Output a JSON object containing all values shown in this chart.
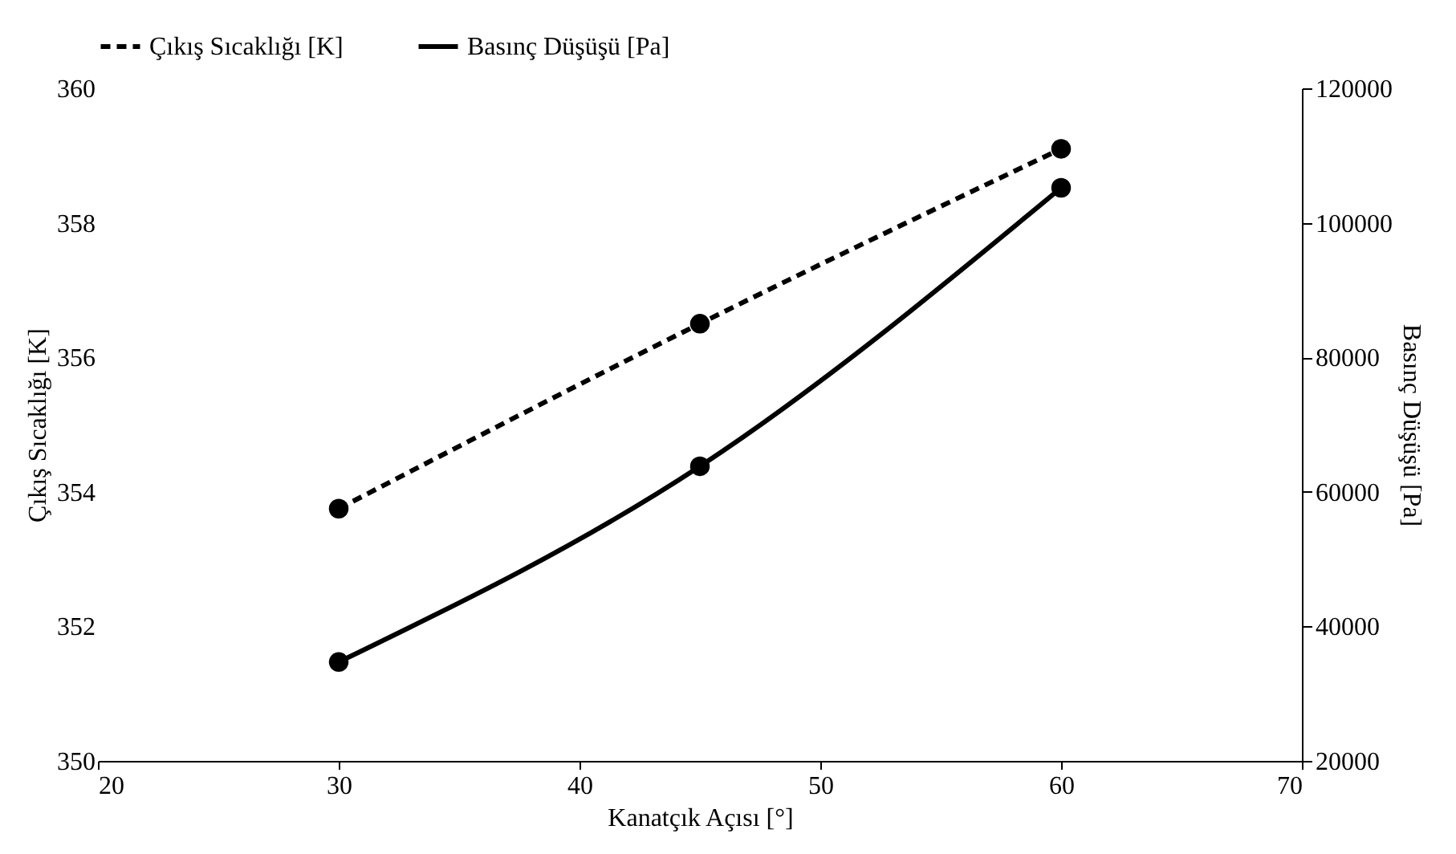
{
  "chart_data": {
    "type": "line",
    "xlabel": "Kanatçık Açısı [°]",
    "ylabel": "Çıkış Sıcaklığı [K]",
    "y2label": "Basınç Düşüşü [Pa]",
    "x": [
      30,
      45,
      60
    ],
    "series": [
      {
        "name": "Çıkış Sıcaklığı [K]",
        "color": "#000000",
        "line_style": "dashed",
        "values": [
          353.75,
          356.5,
          359.1
        ]
      },
      {
        "name": "Basınç Düşüşü [Pa]",
        "color": "#000000",
        "line_style": "solid",
        "axis": "y2",
        "values": [
          34700,
          63800,
          105200
        ]
      }
    ],
    "xlim": [
      20,
      70
    ],
    "xticks": [
      20,
      30,
      40,
      50,
      60,
      70
    ],
    "ylim": [
      350,
      360
    ],
    "yticks": [
      350,
      352,
      354,
      356,
      358,
      360
    ],
    "y2lim": [
      20000,
      120000
    ],
    "y2ticks": [
      20000,
      40000,
      60000,
      80000,
      100000,
      120000
    ],
    "marker": "circle",
    "grid": false,
    "legend": "top"
  }
}
